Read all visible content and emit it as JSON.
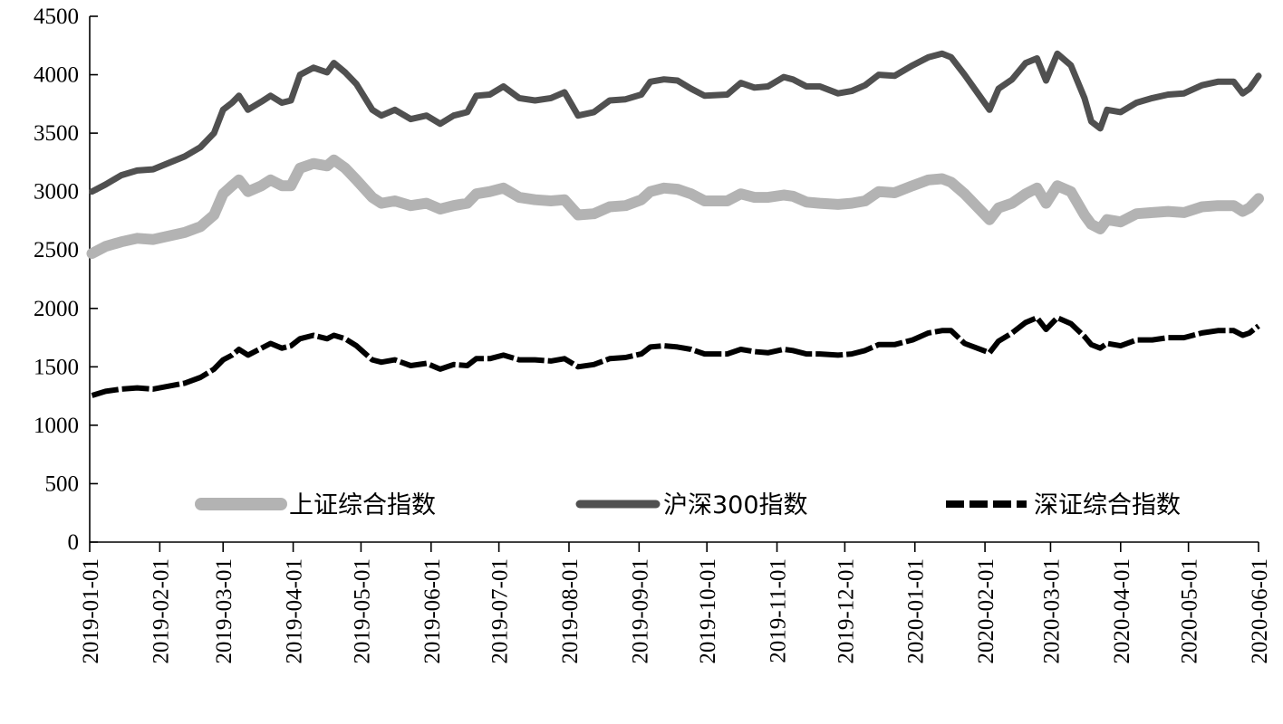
{
  "chart_data": {
    "type": "line",
    "title": "",
    "xlabel": "",
    "ylabel": "",
    "ylim": [
      0,
      4500
    ],
    "yticks": [
      0,
      500,
      1000,
      1500,
      2000,
      2500,
      3000,
      3500,
      4000,
      4500
    ],
    "xlim": [
      "2019-01-01",
      "2020-06-01"
    ],
    "xticks": [
      "2019-01-01",
      "2019-02-01",
      "2019-03-01",
      "2019-04-01",
      "2019-05-01",
      "2019-06-01",
      "2019-07-01",
      "2019-08-01",
      "2019-09-01",
      "2019-10-01",
      "2019-11-01",
      "2019-12-01",
      "2020-01-01",
      "2020-02-01",
      "2020-03-01",
      "2020-04-01",
      "2020-05-01",
      "2020-06-01"
    ],
    "grid": false,
    "legend_position": "bottom",
    "series": [
      {
        "name": "上证综合指数",
        "color": "#b3b3b3",
        "style": "solid-thick",
        "points": [
          [
            "2019-01-02",
            2470
          ],
          [
            "2019-01-08",
            2530
          ],
          [
            "2019-01-15",
            2570
          ],
          [
            "2019-01-22",
            2600
          ],
          [
            "2019-01-29",
            2590
          ],
          [
            "2019-02-12",
            2650
          ],
          [
            "2019-02-19",
            2700
          ],
          [
            "2019-02-25",
            2800
          ],
          [
            "2019-03-01",
            2980
          ],
          [
            "2019-03-05",
            3050
          ],
          [
            "2019-03-08",
            3100
          ],
          [
            "2019-03-12",
            3000
          ],
          [
            "2019-03-18",
            3050
          ],
          [
            "2019-03-22",
            3100
          ],
          [
            "2019-03-27",
            3050
          ],
          [
            "2019-03-31",
            3050
          ],
          [
            "2019-04-04",
            3200
          ],
          [
            "2019-04-10",
            3240
          ],
          [
            "2019-04-16",
            3220
          ],
          [
            "2019-04-19",
            3270
          ],
          [
            "2019-04-24",
            3200
          ],
          [
            "2019-04-29",
            3100
          ],
          [
            "2019-05-06",
            2950
          ],
          [
            "2019-05-10",
            2900
          ],
          [
            "2019-05-16",
            2920
          ],
          [
            "2019-05-23",
            2880
          ],
          [
            "2019-05-30",
            2900
          ],
          [
            "2019-06-05",
            2850
          ],
          [
            "2019-06-11",
            2880
          ],
          [
            "2019-06-17",
            2900
          ],
          [
            "2019-06-21",
            2980
          ],
          [
            "2019-06-27",
            3000
          ],
          [
            "2019-07-03",
            3030
          ],
          [
            "2019-07-10",
            2950
          ],
          [
            "2019-07-17",
            2930
          ],
          [
            "2019-07-24",
            2920
          ],
          [
            "2019-07-30",
            2930
          ],
          [
            "2019-08-05",
            2800
          ],
          [
            "2019-08-12",
            2810
          ],
          [
            "2019-08-19",
            2870
          ],
          [
            "2019-08-26",
            2880
          ],
          [
            "2019-09-02",
            2930
          ],
          [
            "2019-09-06",
            3000
          ],
          [
            "2019-09-12",
            3030
          ],
          [
            "2019-09-18",
            3020
          ],
          [
            "2019-09-24",
            2980
          ],
          [
            "2019-09-30",
            2920
          ],
          [
            "2019-10-10",
            2920
          ],
          [
            "2019-10-16",
            2980
          ],
          [
            "2019-10-22",
            2950
          ],
          [
            "2019-10-28",
            2950
          ],
          [
            "2019-11-04",
            2970
          ],
          [
            "2019-11-08",
            2960
          ],
          [
            "2019-11-14",
            2910
          ],
          [
            "2019-11-20",
            2900
          ],
          [
            "2019-11-28",
            2890
          ],
          [
            "2019-12-04",
            2900
          ],
          [
            "2019-12-10",
            2920
          ],
          [
            "2019-12-16",
            3000
          ],
          [
            "2019-12-23",
            2990
          ],
          [
            "2019-12-31",
            3050
          ],
          [
            "2020-01-07",
            3100
          ],
          [
            "2020-01-13",
            3110
          ],
          [
            "2020-01-17",
            3080
          ],
          [
            "2020-01-23",
            2980
          ],
          [
            "2020-02-03",
            2760
          ],
          [
            "2020-02-07",
            2860
          ],
          [
            "2020-02-13",
            2900
          ],
          [
            "2020-02-19",
            2980
          ],
          [
            "2020-02-24",
            3030
          ],
          [
            "2020-02-28",
            2900
          ],
          [
            "2020-03-04",
            3050
          ],
          [
            "2020-03-10",
            3000
          ],
          [
            "2020-03-16",
            2800
          ],
          [
            "2020-03-19",
            2720
          ],
          [
            "2020-03-23",
            2680
          ],
          [
            "2020-03-26",
            2760
          ],
          [
            "2020-04-01",
            2740
          ],
          [
            "2020-04-08",
            2810
          ],
          [
            "2020-04-15",
            2820
          ],
          [
            "2020-04-22",
            2830
          ],
          [
            "2020-04-29",
            2820
          ],
          [
            "2020-05-07",
            2870
          ],
          [
            "2020-05-14",
            2880
          ],
          [
            "2020-05-21",
            2880
          ],
          [
            "2020-05-25",
            2830
          ],
          [
            "2020-05-28",
            2860
          ],
          [
            "2020-06-01",
            2940
          ]
        ]
      },
      {
        "name": "沪深300指数",
        "color": "#505050",
        "style": "solid",
        "points": [
          [
            "2019-01-02",
            3000
          ],
          [
            "2019-01-08",
            3060
          ],
          [
            "2019-01-15",
            3140
          ],
          [
            "2019-01-22",
            3180
          ],
          [
            "2019-01-29",
            3190
          ],
          [
            "2019-02-12",
            3300
          ],
          [
            "2019-02-19",
            3380
          ],
          [
            "2019-02-25",
            3500
          ],
          [
            "2019-03-01",
            3700
          ],
          [
            "2019-03-05",
            3760
          ],
          [
            "2019-03-08",
            3820
          ],
          [
            "2019-03-12",
            3700
          ],
          [
            "2019-03-18",
            3770
          ],
          [
            "2019-03-22",
            3820
          ],
          [
            "2019-03-27",
            3760
          ],
          [
            "2019-03-31",
            3780
          ],
          [
            "2019-04-04",
            4000
          ],
          [
            "2019-04-10",
            4060
          ],
          [
            "2019-04-16",
            4020
          ],
          [
            "2019-04-19",
            4100
          ],
          [
            "2019-04-24",
            4020
          ],
          [
            "2019-04-29",
            3920
          ],
          [
            "2019-05-06",
            3700
          ],
          [
            "2019-05-10",
            3650
          ],
          [
            "2019-05-16",
            3700
          ],
          [
            "2019-05-23",
            3620
          ],
          [
            "2019-05-30",
            3650
          ],
          [
            "2019-06-05",
            3580
          ],
          [
            "2019-06-11",
            3650
          ],
          [
            "2019-06-17",
            3680
          ],
          [
            "2019-06-21",
            3820
          ],
          [
            "2019-06-27",
            3830
          ],
          [
            "2019-07-03",
            3900
          ],
          [
            "2019-07-10",
            3800
          ],
          [
            "2019-07-17",
            3780
          ],
          [
            "2019-07-24",
            3800
          ],
          [
            "2019-07-30",
            3850
          ],
          [
            "2019-08-05",
            3650
          ],
          [
            "2019-08-12",
            3680
          ],
          [
            "2019-08-19",
            3780
          ],
          [
            "2019-08-26",
            3790
          ],
          [
            "2019-09-02",
            3830
          ],
          [
            "2019-09-06",
            3940
          ],
          [
            "2019-09-12",
            3960
          ],
          [
            "2019-09-18",
            3950
          ],
          [
            "2019-09-24",
            3880
          ],
          [
            "2019-09-30",
            3820
          ],
          [
            "2019-10-10",
            3830
          ],
          [
            "2019-10-16",
            3930
          ],
          [
            "2019-10-22",
            3890
          ],
          [
            "2019-10-28",
            3900
          ],
          [
            "2019-11-04",
            3980
          ],
          [
            "2019-11-08",
            3960
          ],
          [
            "2019-11-14",
            3900
          ],
          [
            "2019-11-20",
            3900
          ],
          [
            "2019-11-28",
            3840
          ],
          [
            "2019-12-04",
            3860
          ],
          [
            "2019-12-10",
            3910
          ],
          [
            "2019-12-16",
            4000
          ],
          [
            "2019-12-23",
            3990
          ],
          [
            "2019-12-31",
            4080
          ],
          [
            "2020-01-07",
            4150
          ],
          [
            "2020-01-13",
            4180
          ],
          [
            "2020-01-17",
            4150
          ],
          [
            "2020-01-23",
            4000
          ],
          [
            "2020-02-03",
            3700
          ],
          [
            "2020-02-07",
            3880
          ],
          [
            "2020-02-13",
            3960
          ],
          [
            "2020-02-19",
            4100
          ],
          [
            "2020-02-24",
            4140
          ],
          [
            "2020-02-28",
            3950
          ],
          [
            "2020-03-04",
            4180
          ],
          [
            "2020-03-10",
            4080
          ],
          [
            "2020-03-16",
            3800
          ],
          [
            "2020-03-19",
            3600
          ],
          [
            "2020-03-23",
            3540
          ],
          [
            "2020-03-26",
            3700
          ],
          [
            "2020-04-01",
            3680
          ],
          [
            "2020-04-08",
            3760
          ],
          [
            "2020-04-15",
            3800
          ],
          [
            "2020-04-22",
            3830
          ],
          [
            "2020-04-29",
            3840
          ],
          [
            "2020-05-07",
            3910
          ],
          [
            "2020-05-14",
            3940
          ],
          [
            "2020-05-21",
            3940
          ],
          [
            "2020-05-25",
            3840
          ],
          [
            "2020-05-28",
            3880
          ],
          [
            "2020-06-01",
            3990
          ]
        ]
      },
      {
        "name": "深证综合指数",
        "color": "#000000",
        "style": "dashed",
        "points": [
          [
            "2019-01-02",
            1255
          ],
          [
            "2019-01-08",
            1290
          ],
          [
            "2019-01-15",
            1310
          ],
          [
            "2019-01-22",
            1320
          ],
          [
            "2019-01-29",
            1310
          ],
          [
            "2019-02-12",
            1360
          ],
          [
            "2019-02-19",
            1410
          ],
          [
            "2019-02-25",
            1480
          ],
          [
            "2019-03-01",
            1560
          ],
          [
            "2019-03-05",
            1600
          ],
          [
            "2019-03-08",
            1650
          ],
          [
            "2019-03-12",
            1600
          ],
          [
            "2019-03-18",
            1660
          ],
          [
            "2019-03-22",
            1700
          ],
          [
            "2019-03-27",
            1660
          ],
          [
            "2019-03-31",
            1680
          ],
          [
            "2019-04-04",
            1740
          ],
          [
            "2019-04-10",
            1770
          ],
          [
            "2019-04-16",
            1740
          ],
          [
            "2019-04-19",
            1770
          ],
          [
            "2019-04-24",
            1740
          ],
          [
            "2019-04-29",
            1680
          ],
          [
            "2019-05-06",
            1560
          ],
          [
            "2019-05-10",
            1540
          ],
          [
            "2019-05-16",
            1560
          ],
          [
            "2019-05-23",
            1510
          ],
          [
            "2019-05-30",
            1530
          ],
          [
            "2019-06-05",
            1480
          ],
          [
            "2019-06-11",
            1520
          ],
          [
            "2019-06-17",
            1510
          ],
          [
            "2019-06-21",
            1570
          ],
          [
            "2019-06-27",
            1570
          ],
          [
            "2019-07-03",
            1600
          ],
          [
            "2019-07-10",
            1560
          ],
          [
            "2019-07-17",
            1560
          ],
          [
            "2019-07-24",
            1550
          ],
          [
            "2019-07-30",
            1570
          ],
          [
            "2019-08-05",
            1500
          ],
          [
            "2019-08-12",
            1520
          ],
          [
            "2019-08-19",
            1570
          ],
          [
            "2019-08-26",
            1580
          ],
          [
            "2019-09-02",
            1610
          ],
          [
            "2019-09-06",
            1670
          ],
          [
            "2019-09-12",
            1680
          ],
          [
            "2019-09-18",
            1670
          ],
          [
            "2019-09-24",
            1650
          ],
          [
            "2019-09-30",
            1610
          ],
          [
            "2019-10-10",
            1610
          ],
          [
            "2019-10-16",
            1650
          ],
          [
            "2019-10-22",
            1630
          ],
          [
            "2019-10-28",
            1620
          ],
          [
            "2019-11-04",
            1650
          ],
          [
            "2019-11-08",
            1640
          ],
          [
            "2019-11-14",
            1610
          ],
          [
            "2019-11-20",
            1610
          ],
          [
            "2019-11-28",
            1600
          ],
          [
            "2019-12-04",
            1610
          ],
          [
            "2019-12-10",
            1640
          ],
          [
            "2019-12-16",
            1690
          ],
          [
            "2019-12-23",
            1690
          ],
          [
            "2019-12-31",
            1730
          ],
          [
            "2020-01-07",
            1790
          ],
          [
            "2020-01-13",
            1810
          ],
          [
            "2020-01-17",
            1810
          ],
          [
            "2020-01-23",
            1700
          ],
          [
            "2020-02-03",
            1620
          ],
          [
            "2020-02-07",
            1720
          ],
          [
            "2020-02-13",
            1790
          ],
          [
            "2020-02-19",
            1880
          ],
          [
            "2020-02-24",
            1920
          ],
          [
            "2020-02-28",
            1820
          ],
          [
            "2020-03-04",
            1920
          ],
          [
            "2020-03-10",
            1870
          ],
          [
            "2020-03-16",
            1760
          ],
          [
            "2020-03-19",
            1690
          ],
          [
            "2020-03-23",
            1660
          ],
          [
            "2020-03-26",
            1700
          ],
          [
            "2020-04-01",
            1680
          ],
          [
            "2020-04-08",
            1730
          ],
          [
            "2020-04-15",
            1730
          ],
          [
            "2020-04-22",
            1750
          ],
          [
            "2020-04-29",
            1750
          ],
          [
            "2020-05-07",
            1790
          ],
          [
            "2020-05-14",
            1810
          ],
          [
            "2020-05-21",
            1810
          ],
          [
            "2020-05-25",
            1770
          ],
          [
            "2020-05-28",
            1790
          ],
          [
            "2020-06-01",
            1850
          ]
        ]
      }
    ]
  }
}
